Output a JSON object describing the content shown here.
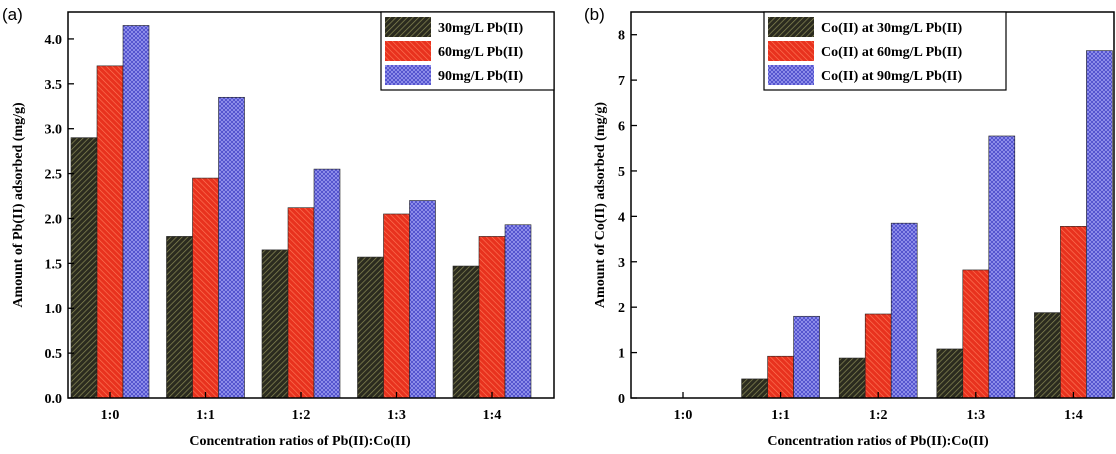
{
  "chart_data": [
    {
      "type": "bar",
      "panel_label": "(a)",
      "categories": [
        "1:0",
        "1:1",
        "1:2",
        "1:3",
        "1:4"
      ],
      "xlabel": "Concentration ratios of Pb(II):Co(II)",
      "ylabel": "Amount of Pb(II) adsorbed (mg/g)",
      "ylim": [
        0,
        4.3
      ],
      "yticks": [
        "0.0",
        "0.5",
        "1.0",
        "1.5",
        "2.0",
        "2.5",
        "3.0",
        "3.5",
        "4.0"
      ],
      "grid": false,
      "legend": "top-right",
      "series": [
        {
          "name": "30mg/L Pb(II)",
          "values": [
            2.9,
            1.8,
            1.65,
            1.57,
            1.47
          ]
        },
        {
          "name": "60mg/L Pb(II)",
          "values": [
            3.7,
            2.45,
            2.12,
            2.05,
            1.8
          ]
        },
        {
          "name": "90mg/L Pb(II)",
          "values": [
            4.15,
            3.35,
            2.55,
            2.2,
            1.93
          ]
        }
      ]
    },
    {
      "type": "bar",
      "panel_label": "(b)",
      "categories": [
        "1:0",
        "1:1",
        "1:2",
        "1:3",
        "1:4"
      ],
      "xlabel": "Concentration ratios of Pb(II):Co(II)",
      "ylabel": "Amount of Co(II) adsorbed (mg/g)",
      "ylim": [
        0,
        8.5
      ],
      "yticks": [
        "0",
        "1",
        "2",
        "3",
        "4",
        "5",
        "6",
        "7",
        "8"
      ],
      "grid": false,
      "legend": "top-center",
      "series": [
        {
          "name": "Co(II) at 30mg/L Pb(II)",
          "values": [
            0,
            0.42,
            0.88,
            1.08,
            1.88
          ]
        },
        {
          "name": "Co(II) at 60mg/L Pb(II)",
          "values": [
            0,
            0.92,
            1.85,
            2.82,
            3.78
          ]
        },
        {
          "name": "Co(II) at 90mg/L Pb(II)",
          "values": [
            0,
            1.8,
            3.85,
            5.77,
            7.65
          ]
        }
      ]
    }
  ],
  "colors": {
    "series_1": "#2b2b1f",
    "series_2": "#e8321e",
    "series_3": "#4646c8",
    "hatch_1": "#8a8a55",
    "hatch_2": "#ff7a5a",
    "hatch_3": "#9a9af0"
  }
}
